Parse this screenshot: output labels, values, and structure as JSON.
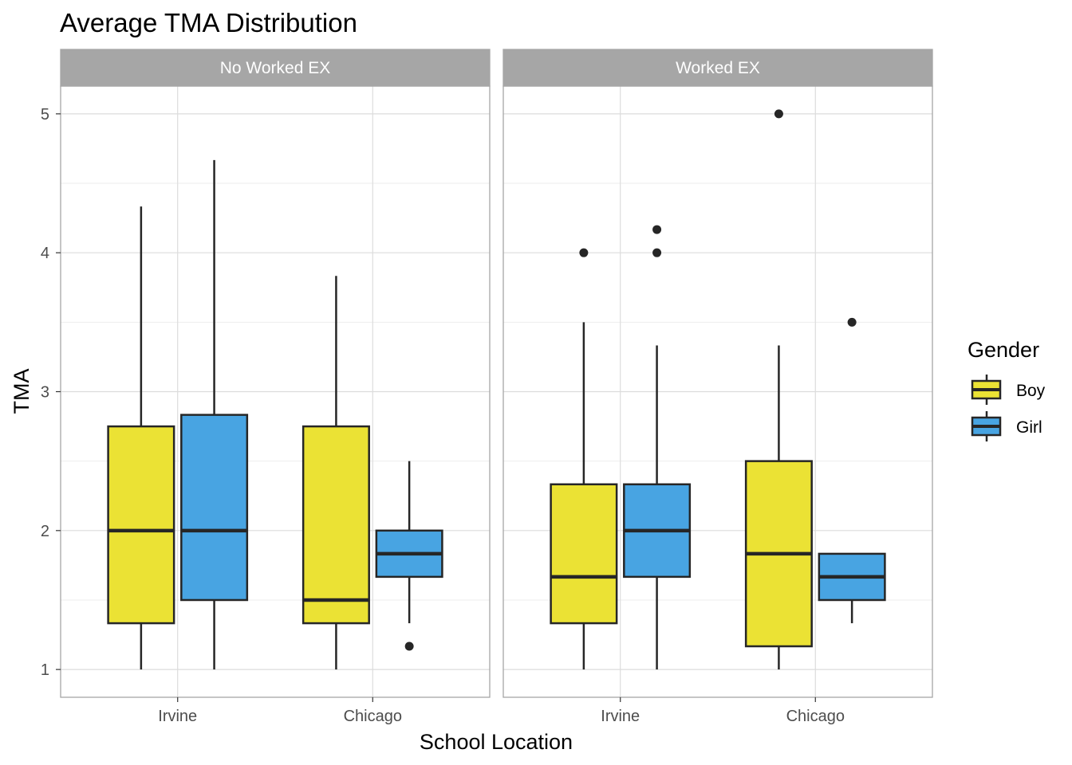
{
  "chart_data": {
    "type": "boxplot",
    "title": "Average TMA Distribution",
    "xlabel": "School Location",
    "ylabel": "TMA",
    "ylim": [
      0.8,
      5.2
    ],
    "yticks": [
      1,
      2,
      3,
      4,
      5
    ],
    "categories": [
      "Irvine",
      "Chicago"
    ],
    "legend": {
      "title": "Gender",
      "position": "right",
      "entries": [
        {
          "name": "Boy",
          "color": "#EBE234"
        },
        {
          "name": "Girl",
          "color": "#48A4E2"
        }
      ]
    },
    "panels": [
      {
        "label": "No Worked EX",
        "groups": [
          {
            "category": "Irvine",
            "gender": "Boy",
            "min": 1.0,
            "q1": 1.333,
            "median": 2.0,
            "q3": 2.75,
            "max": 4.333,
            "outliers": []
          },
          {
            "category": "Irvine",
            "gender": "Girl",
            "min": 1.0,
            "q1": 1.5,
            "median": 2.0,
            "q3": 2.833,
            "max": 4.667,
            "outliers": []
          },
          {
            "category": "Chicago",
            "gender": "Boy",
            "min": 1.0,
            "q1": 1.333,
            "median": 1.5,
            "q3": 2.75,
            "max": 3.833,
            "outliers": []
          },
          {
            "category": "Chicago",
            "gender": "Girl",
            "min": 1.333,
            "q1": 1.667,
            "median": 1.833,
            "q3": 2.0,
            "max": 2.5,
            "outliers": [
              1.167
            ]
          }
        ]
      },
      {
        "label": "Worked EX",
        "groups": [
          {
            "category": "Irvine",
            "gender": "Boy",
            "min": 1.0,
            "q1": 1.333,
            "median": 1.667,
            "q3": 2.333,
            "max": 3.5,
            "outliers": [
              4.0
            ]
          },
          {
            "category": "Irvine",
            "gender": "Girl",
            "min": 1.0,
            "q1": 1.667,
            "median": 2.0,
            "q3": 2.333,
            "max": 3.333,
            "outliers": [
              4.0,
              4.167
            ]
          },
          {
            "category": "Chicago",
            "gender": "Boy",
            "min": 1.0,
            "q1": 1.167,
            "median": 1.833,
            "q3": 2.5,
            "max": 3.333,
            "outliers": [
              5.0
            ]
          },
          {
            "category": "Chicago",
            "gender": "Girl",
            "min": 1.333,
            "q1": 1.5,
            "median": 1.667,
            "q3": 1.833,
            "max": 1.833,
            "outliers": [
              3.5
            ]
          }
        ]
      }
    ],
    "colors": {
      "box_outline": "#262626",
      "strip_fill": "#A6A6A6",
      "panel_border": "#A6A6A6",
      "grid_major": "#DCDCDC",
      "grid_minor": "#EDEDED"
    }
  }
}
